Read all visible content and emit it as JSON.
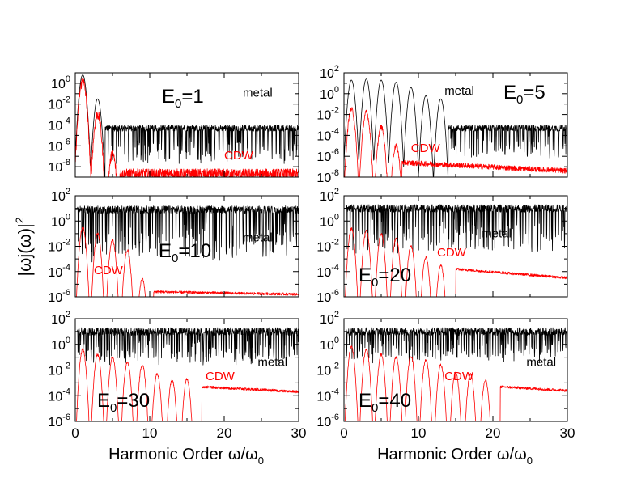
{
  "figure": {
    "ylabel_main": "|ωj(ω)|",
    "ylabel_sup": "2",
    "xlabel_main": "Harmonic Order ω/ω",
    "xlabel_sub": "0",
    "x_ticks": [
      "0",
      "10",
      "20",
      "30"
    ],
    "colors": {
      "metal": "#000000",
      "cdw": "#ff0000",
      "frame": "#000000"
    }
  },
  "chart_data": [
    {
      "type": "line",
      "title": "E0=1",
      "title_main": "E",
      "title_sub": "0",
      "title_rest": "=1",
      "xlim": [
        0,
        30
      ],
      "ylim_log10": [
        -9,
        1
      ],
      "y_scale": "log",
      "y_ticks": [
        {
          "base": "10",
          "exp": "0"
        },
        {
          "base": "10",
          "exp": "-2"
        },
        {
          "base": "10",
          "exp": "-4"
        },
        {
          "base": "10",
          "exp": "-6"
        },
        {
          "base": "10",
          "exp": "-8"
        }
      ],
      "y_tick_exps": [
        0,
        -2,
        -4,
        -6,
        -8
      ],
      "series": [
        {
          "name": "metal",
          "color": "#000000",
          "peaks": [
            {
              "x": 1,
              "log10y": 0.8
            },
            {
              "x": 3,
              "log10y": -1.5
            }
          ],
          "floor_log10": -4.3,
          "floor_start_x": 4,
          "dip_period": 0.55,
          "dip_depth": 2.2
        },
        {
          "name": "CDW",
          "color": "#ff0000",
          "peaks": [
            {
              "x": 1,
              "log10y": 0.2
            },
            {
              "x": 3,
              "log10y": -3.0
            },
            {
              "x": 5,
              "log10y": -6.8
            }
          ],
          "floor_log10": -8.7,
          "floor_start_x": 6,
          "noise": 0.5
        }
      ],
      "labels": [
        {
          "text": "metal",
          "color": "#000000",
          "x": 22.5,
          "log10y": -1.3
        },
        {
          "text": "CDW",
          "color": "#ff0000",
          "x": 20,
          "log10y": -7.3
        }
      ]
    },
    {
      "type": "line",
      "title": "E0=5",
      "title_main": "E",
      "title_sub": "0",
      "title_rest": "=5",
      "xlim": [
        0,
        30
      ],
      "ylim_log10": [
        -8,
        2
      ],
      "y_scale": "log",
      "y_ticks": [
        {
          "base": "10",
          "exp": "2"
        },
        {
          "base": "10",
          "exp": "0"
        },
        {
          "base": "10",
          "exp": "-2"
        },
        {
          "base": "10",
          "exp": "-4"
        },
        {
          "base": "10",
          "exp": "-6"
        },
        {
          "base": "10",
          "exp": "-8"
        }
      ],
      "y_tick_exps": [
        2,
        0,
        -2,
        -4,
        -6,
        -8
      ],
      "series": [
        {
          "name": "metal",
          "color": "#000000",
          "peaks": [
            {
              "x": 1,
              "log10y": 1.3
            },
            {
              "x": 3,
              "log10y": 1.4
            },
            {
              "x": 5,
              "log10y": 1.3
            },
            {
              "x": 7,
              "log10y": 1.1
            },
            {
              "x": 9,
              "log10y": 0.6
            },
            {
              "x": 11,
              "log10y": -0.2
            },
            {
              "x": 13,
              "log10y": -0.5
            }
          ],
          "floor_log10": -3.3,
          "floor_start_x": 14,
          "dip_period": 0.6,
          "dip_depth": 1.8
        },
        {
          "name": "CDW",
          "color": "#ff0000",
          "peaks": [
            {
              "x": 1,
              "log10y": -1.5
            },
            {
              "x": 3,
              "log10y": -1.8
            },
            {
              "x": 5,
              "log10y": -3.2
            },
            {
              "x": 7,
              "log10y": -5.0
            }
          ],
          "floor_log10": -6.6,
          "floor_end_log10": -7.4,
          "floor_start_x": 7.8,
          "noise": 0.25
        }
      ],
      "labels": [
        {
          "text": "metal",
          "color": "#000000",
          "x": 13.5,
          "log10y": -0.1
        },
        {
          "text": "CDW",
          "color": "#ff0000",
          "x": 9,
          "log10y": -5.6
        }
      ]
    },
    {
      "type": "line",
      "title": "E0=10",
      "title_main": "E",
      "title_sub": "0",
      "title_rest": "=10",
      "xlim": [
        0,
        30
      ],
      "ylim_log10": [
        -6,
        2
      ],
      "y_scale": "log",
      "y_ticks": [
        {
          "base": "10",
          "exp": "2"
        },
        {
          "base": "10",
          "exp": "0"
        },
        {
          "base": "10",
          "exp": "-2"
        },
        {
          "base": "10",
          "exp": "-4"
        },
        {
          "base": "10",
          "exp": "-6"
        }
      ],
      "y_tick_exps": [
        2,
        0,
        -2,
        -4,
        -6
      ],
      "series": [
        {
          "name": "metal",
          "color": "#000000",
          "peaks": [],
          "floor_log10": 0.9,
          "floor_start_x": 0.3,
          "dip_period": 0.45,
          "dip_depth": 2.6
        },
        {
          "name": "CDW",
          "color": "#ff0000",
          "peaks": [
            {
              "x": 1,
              "log10y": -0.5
            },
            {
              "x": 3,
              "log10y": -1.0
            },
            {
              "x": 5,
              "log10y": -1.5
            },
            {
              "x": 7,
              "log10y": -2.3
            },
            {
              "x": 9,
              "log10y": -4.6
            }
          ],
          "floor_log10": -5.6,
          "floor_end_log10": -5.8,
          "floor_start_x": 10.5,
          "noise": 0.1
        }
      ],
      "labels": [
        {
          "text": "metal",
          "color": "#000000",
          "x": 22.5,
          "log10y": -1.6
        },
        {
          "text": "CDW",
          "color": "#ff0000",
          "x": 2.5,
          "log10y": -4.2
        }
      ]
    },
    {
      "type": "line",
      "title": "E0=20",
      "title_main": "E",
      "title_sub": "0",
      "title_rest": "=20",
      "xlim": [
        0,
        30
      ],
      "ylim_log10": [
        -6,
        2
      ],
      "y_scale": "log",
      "y_ticks": [
        {
          "base": "10",
          "exp": "2"
        },
        {
          "base": "10",
          "exp": "0"
        },
        {
          "base": "10",
          "exp": "-2"
        },
        {
          "base": "10",
          "exp": "-4"
        },
        {
          "base": "10",
          "exp": "-6"
        }
      ],
      "y_tick_exps": [
        2,
        0,
        -2,
        -4,
        -6
      ],
      "series": [
        {
          "name": "metal",
          "color": "#000000",
          "peaks": [],
          "floor_log10": 1.0,
          "floor_start_x": 0.3,
          "dip_period": 0.4,
          "dip_depth": 2.2
        },
        {
          "name": "CDW",
          "color": "#ff0000",
          "peaks": [
            {
              "x": 1,
              "log10y": -0.6
            },
            {
              "x": 3,
              "log10y": -0.8
            },
            {
              "x": 5,
              "log10y": -1.0
            },
            {
              "x": 7,
              "log10y": -1.4
            },
            {
              "x": 9,
              "log10y": -2.0
            },
            {
              "x": 11,
              "log10y": -2.9
            },
            {
              "x": 13,
              "log10y": -3.5
            }
          ],
          "floor_log10": -3.8,
          "floor_end_log10": -4.5,
          "floor_start_x": 15,
          "noise": 0.1
        }
      ],
      "labels": [
        {
          "text": "metal",
          "color": "#000000",
          "x": 18.5,
          "log10y": -1.3
        },
        {
          "text": "CDW",
          "color": "#ff0000",
          "x": 12.5,
          "log10y": -2.8
        }
      ]
    },
    {
      "type": "line",
      "title": "E0=30",
      "title_main": "E",
      "title_sub": "0",
      "title_rest": "=30",
      "xlim": [
        0,
        30
      ],
      "ylim_log10": [
        -6,
        2
      ],
      "y_scale": "log",
      "y_ticks": [
        {
          "base": "10",
          "exp": "2"
        },
        {
          "base": "10",
          "exp": "0"
        },
        {
          "base": "10",
          "exp": "-2"
        },
        {
          "base": "10",
          "exp": "-4"
        },
        {
          "base": "10",
          "exp": "-6"
        }
      ],
      "y_tick_exps": [
        2,
        0,
        -2,
        -4,
        -6
      ],
      "series": [
        {
          "name": "metal",
          "color": "#000000",
          "peaks": [],
          "floor_log10": 1.0,
          "floor_start_x": 0.3,
          "dip_period": 0.35,
          "dip_depth": 1.6
        },
        {
          "name": "CDW",
          "color": "#ff0000",
          "peaks": [
            {
              "x": 1,
              "log10y": -0.4
            },
            {
              "x": 3,
              "log10y": -0.8
            },
            {
              "x": 5,
              "log10y": -1.0
            },
            {
              "x": 7,
              "log10y": -1.4
            },
            {
              "x": 9,
              "log10y": -1.6
            },
            {
              "x": 11,
              "log10y": -2.3
            },
            {
              "x": 13,
              "log10y": -2.8
            },
            {
              "x": 15,
              "log10y": -2.7
            }
          ],
          "floor_log10": -3.3,
          "floor_end_log10": -3.7,
          "floor_start_x": 17,
          "noise": 0.1
        }
      ],
      "labels": [
        {
          "text": "metal",
          "color": "#000000",
          "x": 24.5,
          "log10y": -1.7
        },
        {
          "text": "CDW",
          "color": "#ff0000",
          "x": 17.5,
          "log10y": -2.8
        }
      ]
    },
    {
      "type": "line",
      "title": "E0=40",
      "title_main": "E",
      "title_sub": "0",
      "title_rest": "=40",
      "xlim": [
        0,
        30
      ],
      "ylim_log10": [
        -6,
        2
      ],
      "y_scale": "log",
      "y_ticks": [
        {
          "base": "10",
          "exp": "2"
        },
        {
          "base": "10",
          "exp": "0"
        },
        {
          "base": "10",
          "exp": "-2"
        },
        {
          "base": "10",
          "exp": "-4"
        },
        {
          "base": "10",
          "exp": "-6"
        }
      ],
      "y_tick_exps": [
        2,
        0,
        -2,
        -4,
        -6
      ],
      "series": [
        {
          "name": "metal",
          "color": "#000000",
          "peaks": [],
          "floor_log10": 1.0,
          "floor_start_x": 0.3,
          "dip_period": 0.35,
          "dip_depth": 1.5
        },
        {
          "name": "CDW",
          "color": "#ff0000",
          "peaks": [
            {
              "x": 1,
              "log10y": -0.2
            },
            {
              "x": 3,
              "log10y": -0.4
            },
            {
              "x": 5,
              "log10y": -0.8
            },
            {
              "x": 7,
              "log10y": -1.0
            },
            {
              "x": 9,
              "log10y": -0.9
            },
            {
              "x": 11,
              "log10y": -1.2
            },
            {
              "x": 13,
              "log10y": -1.6
            },
            {
              "x": 15,
              "log10y": -2.2
            },
            {
              "x": 17,
              "log10y": -2.3
            },
            {
              "x": 19,
              "log10y": -2.8
            }
          ],
          "floor_log10": -3.3,
          "floor_end_log10": -3.6,
          "floor_start_x": 21,
          "noise": 0.1
        }
      ],
      "labels": [
        {
          "text": "metal",
          "color": "#000000",
          "x": 24.5,
          "log10y": -1.7
        },
        {
          "text": "CDW",
          "color": "#ff0000",
          "x": 13.5,
          "log10y": -2.8
        }
      ]
    }
  ]
}
